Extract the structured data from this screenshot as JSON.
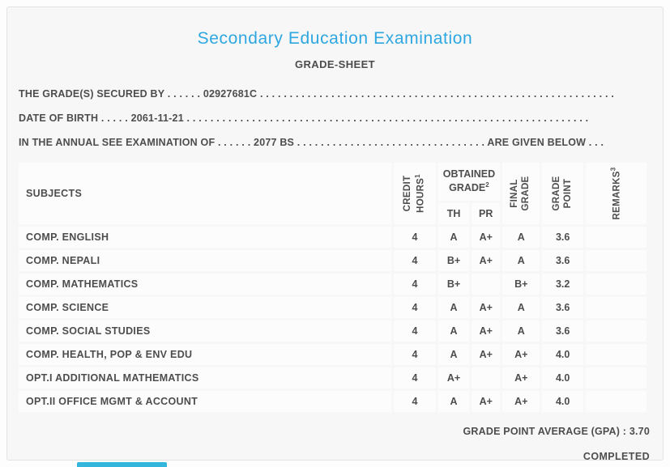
{
  "header": {
    "title": "Secondary Education Examination",
    "subtitle": "GRADE-SHEET"
  },
  "info": {
    "line1": "THE GRADE(S) SECURED BY . . . . . . 02927681C . . . . . . . . . . . . . . . . . . . . . . . . . . . . . . . . . . . . . . . . . . . . . . . . . . . . . . . . . . . .",
    "line2": "DATE OF BIRTH . . . . . 2061-11-21 . . . . . . . . . . . . . . . . . . . . . . . . . . . . . . . . . . . . . . . . . . . . . . . . . . . . . . . . . . . . . . . . . . . .",
    "line3": "IN THE ANNUAL SEE EXAMINATION OF . . . . . . 2077 BS . . . . . . . . . . . . . . . . . . . . . . . . . . . . . . . . ARE GIVEN BELOW . . ."
  },
  "table": {
    "headers": {
      "subjects": "SUBJECTS",
      "credit_hours": {
        "line1": "CREDIT",
        "line2": "HOURS",
        "sup": "1"
      },
      "obtained_grade": {
        "line1": "OBTAINED",
        "line2": "GRADE",
        "sup": "2"
      },
      "th": "TH",
      "pr": "PR",
      "final_grade": {
        "line1": "FINAL",
        "line2": "GRADE"
      },
      "grade_point": {
        "line1": "GRADE",
        "line2": "POINT"
      },
      "remarks": {
        "line1": "REMARKS",
        "sup": "3"
      }
    },
    "rows": [
      {
        "subject": "COMP. ENGLISH",
        "credit_hours": "4",
        "th": "A",
        "pr": "A+",
        "final_grade": "A",
        "grade_point": "3.6",
        "remarks": ""
      },
      {
        "subject": "COMP. NEPALI",
        "credit_hours": "4",
        "th": "B+",
        "pr": "A+",
        "final_grade": "A",
        "grade_point": "3.6",
        "remarks": ""
      },
      {
        "subject": "COMP. MATHEMATICS",
        "credit_hours": "4",
        "th": "B+",
        "pr": "",
        "final_grade": "B+",
        "grade_point": "3.2",
        "remarks": ""
      },
      {
        "subject": "COMP. SCIENCE",
        "credit_hours": "4",
        "th": "A",
        "pr": "A+",
        "final_grade": "A",
        "grade_point": "3.6",
        "remarks": ""
      },
      {
        "subject": "COMP. SOCIAL STUDIES",
        "credit_hours": "4",
        "th": "A",
        "pr": "A+",
        "final_grade": "A",
        "grade_point": "3.6",
        "remarks": ""
      },
      {
        "subject": "COMP. HEALTH, POP & ENV EDU",
        "credit_hours": "4",
        "th": "A",
        "pr": "A+",
        "final_grade": "A+",
        "grade_point": "4.0",
        "remarks": ""
      },
      {
        "subject": "OPT.I ADDITIONAL MATHEMATICS",
        "credit_hours": "4",
        "th": "A+",
        "pr": "",
        "final_grade": "A+",
        "grade_point": "4.0",
        "remarks": ""
      },
      {
        "subject": "OPT.II OFFICE MGMT & ACCOUNT",
        "credit_hours": "4",
        "th": "A",
        "pr": "A+",
        "final_grade": "A+",
        "grade_point": "4.0",
        "remarks": ""
      }
    ]
  },
  "summary": {
    "gpa_label": "GRADE POINT AVERAGE (GPA) :",
    "gpa_value": "3.70",
    "status": "COMPLETED"
  },
  "colors": {
    "accent_blue": "#2ea7e0",
    "text": "#4d4d4d",
    "card_background": "#f7f7f7",
    "cell_background": "#fcfcfc",
    "fold_bar_cyan": "#33b5dc"
  }
}
